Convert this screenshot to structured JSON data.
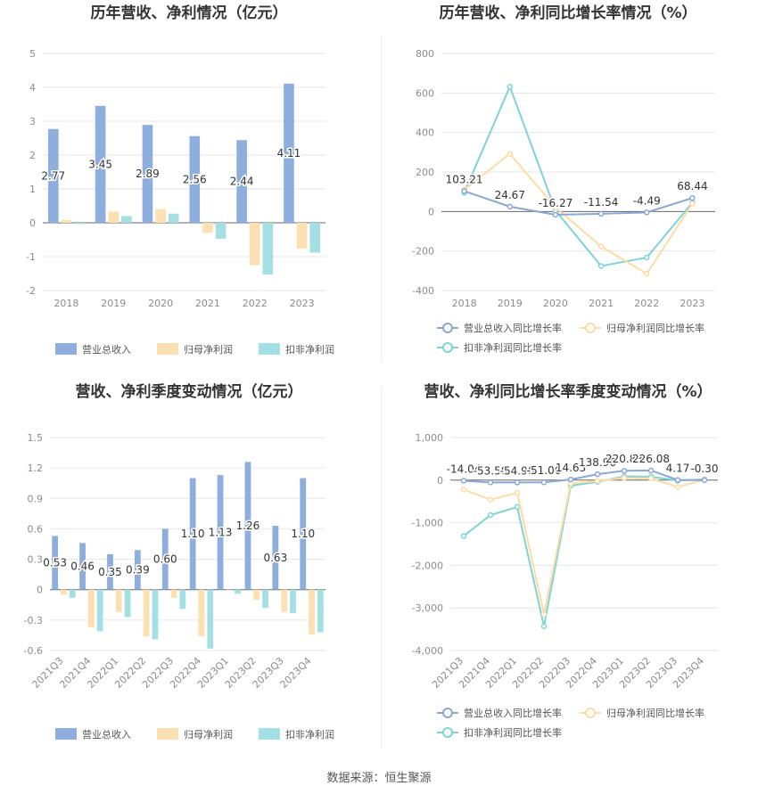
{
  "colors": {
    "revenue": "#8eaede",
    "parent_profit": "#fde0b2",
    "deducted_profit": "#a4e0e3",
    "revenue_line": "#8ba7d6",
    "parent_line": "#fddca4",
    "deducted_line": "#7fd3d6"
  },
  "source": "数据来源：恒生聚源",
  "chart_data": [
    {
      "type": "bar",
      "title": "历年营收、净利情况（亿元）",
      "categories": [
        "2018",
        "2019",
        "2020",
        "2021",
        "2022",
        "2023"
      ],
      "ylim": [
        -2,
        5
      ],
      "yticks": [
        -2,
        -1,
        0,
        1,
        2,
        3,
        4,
        5
      ],
      "ytick_labels": [
        "-2",
        "-1",
        "0",
        "1",
        "2",
        "3",
        "4",
        "5"
      ],
      "series": [
        {
          "name": "营业总收入",
          "values": [
            2.77,
            3.45,
            2.89,
            2.56,
            2.44,
            4.11
          ],
          "labels": [
            "2.77",
            "3.45",
            "2.89",
            "2.56",
            "2.44",
            "4.11"
          ]
        },
        {
          "name": "归母净利润",
          "values": [
            0.08,
            0.33,
            0.4,
            -0.3,
            -1.25,
            -0.76
          ]
        },
        {
          "name": "扣非净利润",
          "values": [
            -0.04,
            0.2,
            0.27,
            -0.47,
            -1.53,
            -0.88
          ]
        }
      ],
      "legend": "bottom"
    },
    {
      "type": "line",
      "title": "历年营收、净利同比增长率情况（%）",
      "categories": [
        "2018",
        "2019",
        "2020",
        "2021",
        "2022",
        "2023"
      ],
      "ylim": [
        -400,
        800
      ],
      "yticks": [
        -400,
        -200,
        0,
        200,
        400,
        600,
        800
      ],
      "ytick_labels": [
        "-400",
        "-200",
        "0",
        "200",
        "400",
        "600",
        "800"
      ],
      "series": [
        {
          "name": "营业总收入同比增长率",
          "values": [
            103.21,
            24.67,
            -16.27,
            -11.54,
            -4.49,
            68.44
          ],
          "labels": [
            "103.21",
            "24.67",
            "-16.27",
            "-11.54",
            "-4.49",
            "68.44"
          ]
        },
        {
          "name": "归母净利润同比增长率",
          "values": [
            110,
            292,
            20,
            -177,
            -315,
            40
          ]
        },
        {
          "name": "扣非净利润同比增长率",
          "values": [
            95,
            632,
            5,
            -276,
            -233,
            45
          ]
        }
      ],
      "legend": "bottom"
    },
    {
      "type": "bar",
      "title": "营收、净利季度变动情况（亿元）",
      "categories": [
        "2021Q3",
        "2021Q4",
        "2022Q1",
        "2022Q2",
        "2022Q3",
        "2022Q4",
        "2023Q1",
        "2023Q2",
        "2023Q3",
        "2023Q4"
      ],
      "ylim": [
        -0.6,
        1.5
      ],
      "yticks": [
        -0.6,
        -0.3,
        0,
        0.3,
        0.6,
        0.9,
        1.2,
        1.5
      ],
      "ytick_labels": [
        "-0.6",
        "-0.3",
        "0",
        "0.3",
        "0.6",
        "0.9",
        "1.2",
        "1.5"
      ],
      "series": [
        {
          "name": "营业总收入",
          "values": [
            0.53,
            0.46,
            0.35,
            0.39,
            0.6,
            1.1,
            1.13,
            1.26,
            0.63,
            1.1
          ],
          "labels": [
            "0.53",
            "0.46",
            "0.35",
            "0.39",
            "0.60",
            "1.10",
            "1.13",
            "1.26",
            "0.63",
            "1.10"
          ]
        },
        {
          "name": "归母净利润",
          "values": [
            -0.05,
            -0.37,
            -0.22,
            -0.46,
            -0.08,
            -0.46,
            0.0,
            -0.1,
            -0.22,
            -0.44
          ]
        },
        {
          "name": "扣非净利润",
          "values": [
            -0.08,
            -0.41,
            -0.27,
            -0.49,
            -0.19,
            -0.58,
            -0.04,
            -0.18,
            -0.23,
            -0.42
          ]
        }
      ],
      "legend": "bottom"
    },
    {
      "type": "line",
      "title": "营收、净利同比增长率季度变动情况（%）",
      "categories": [
        "2021Q3",
        "2021Q4",
        "2022Q1",
        "2022Q2",
        "2022Q3",
        "2022Q4",
        "2023Q1",
        "2023Q2",
        "2023Q3",
        "2023Q4"
      ],
      "ylim": [
        -4000,
        1000
      ],
      "yticks": [
        -4000,
        -3000,
        -2000,
        -1000,
        0,
        1000
      ],
      "ytick_labels": [
        "-4,000",
        "-3,000",
        "-2,000",
        "-1,000",
        "0",
        "1,000"
      ],
      "series": [
        {
          "name": "营业总收入同比增长率",
          "values": [
            -14.04,
            -53.5,
            -54.96,
            -51.06,
            14.63,
            138.96,
            220.83,
            226.08,
            4.17,
            -0.3
          ],
          "labels": [
            "-14.04",
            "-53.50",
            "-54.96",
            "-51.06",
            "14.63",
            "138.96",
            "220.83",
            "226.08",
            "4.17",
            "-0.30"
          ]
        },
        {
          "name": "归母净利润同比增长率",
          "values": [
            -220,
            -460,
            -300,
            -3150,
            -80,
            -20,
            50,
            40,
            -160,
            10
          ]
        },
        {
          "name": "扣非净利润同比增长率",
          "values": [
            -1310,
            -820,
            -630,
            -3430,
            -130,
            -40,
            90,
            80,
            -10,
            20
          ]
        }
      ],
      "legend": "bottom"
    }
  ]
}
